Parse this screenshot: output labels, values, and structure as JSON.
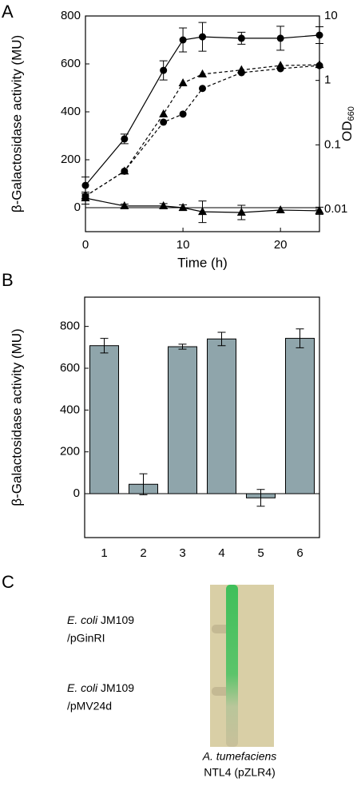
{
  "chart_data": [
    {
      "type": "line",
      "ylabel": "β-Galactosidase activity (MU)",
      "xlabel": "Time (h)",
      "y2label": "OD",
      "y2label_sub": "660",
      "x": [
        0,
        4,
        8,
        10,
        12,
        16,
        20,
        24
      ],
      "xlim": [
        0,
        24
      ],
      "xticks": [
        0,
        10,
        20
      ],
      "ylim": [
        -100,
        800
      ],
      "yticks": [
        0,
        200,
        400,
        600,
        800
      ],
      "y2lim": [
        0.0045,
        10
      ],
      "y2ticks": [
        0.01,
        0.1,
        1,
        10
      ],
      "y2log": true,
      "series": [
        {
          "marker": "circle",
          "dash": false,
          "axis": "y",
          "color": "#000000",
          "values": [
            93,
            287,
            573,
            700,
            713,
            707,
            707,
            720
          ],
          "errors": [
            35,
            20,
            40,
            50,
            60,
            25,
            50,
            35
          ]
        },
        {
          "marker": "triangle",
          "dash": false,
          "axis": "y",
          "color": "#000000",
          "values": [
            40,
            7,
            7,
            0,
            -17,
            -20,
            -10,
            -13
          ],
          "errors": [
            25,
            8,
            10,
            12,
            45,
            30,
            10,
            15
          ]
        },
        {
          "marker": "circle",
          "dash": true,
          "axis": "y2",
          "color": "#000000",
          "values": [
            0.016,
            0.039,
            0.225,
            0.3,
            0.75,
            1.32,
            1.52,
            1.7
          ]
        },
        {
          "marker": "triangle",
          "dash": true,
          "axis": "y2",
          "color": "#000000",
          "values": [
            0.016,
            0.039,
            0.3,
            0.91,
            1.25,
            1.45,
            1.7,
            1.75
          ]
        }
      ]
    },
    {
      "type": "bar",
      "ylabel": "β-Galactosidase activity (MU)",
      "categories": [
        "1",
        "2",
        "3",
        "4",
        "5",
        "6"
      ],
      "values": [
        708,
        45,
        703,
        740,
        -20,
        743
      ],
      "errors": [
        35,
        50,
        12,
        32,
        40,
        45
      ],
      "color": "#8fa5ab",
      "ylim": [
        -210,
        940
      ],
      "yticks": [
        0,
        200,
        400,
        600,
        800
      ]
    }
  ],
  "panel_labels": [
    "A",
    "B",
    "C"
  ],
  "panel_c": {
    "lanes": [
      {
        "species": "E. coli",
        "strain": " JM109",
        "plasmid": "/pGinRI"
      },
      {
        "species": "E. coli",
        "strain": " JM109",
        "plasmid": "/pMV24d"
      }
    ],
    "reporter": {
      "species": "A. tumefaciens",
      "strain": "NTL4 (pZLR4)"
    }
  }
}
